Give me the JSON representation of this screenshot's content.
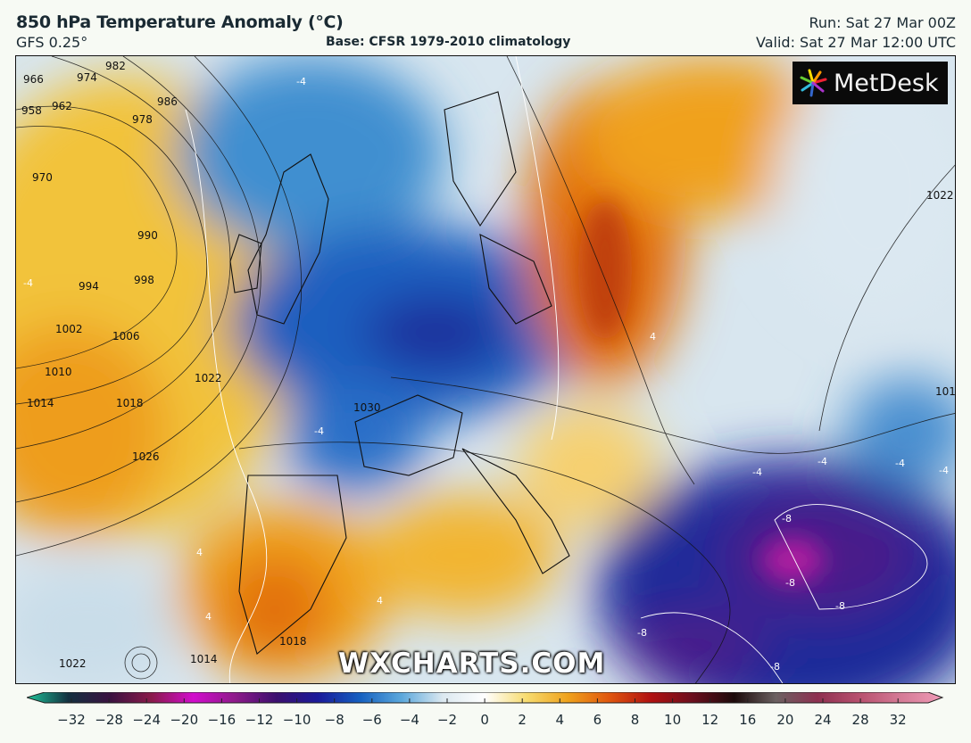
{
  "header": {
    "title": "850 hPa Temperature Anomaly (°C)",
    "model": "GFS 0.25°",
    "base": "Base: CFSR 1979-2010 climatology",
    "run": "Run: Sat 27 Mar 00Z",
    "valid": "Valid: Sat 27 Mar 12:00 UTC"
  },
  "logo": {
    "text": "MetDesk"
  },
  "watermark": "WXCHARTS.COM",
  "colorbar": {
    "labels": [
      "−32",
      "−28",
      "−24",
      "−20",
      "−16",
      "−12",
      "−10",
      "−8",
      "−6",
      "−4",
      "−2",
      "0",
      "2",
      "4",
      "6",
      "8",
      "10",
      "12",
      "16",
      "20",
      "24",
      "28",
      "32"
    ],
    "colors": [
      "#1fc59a",
      "#13303f",
      "#3a1240",
      "#8a1a4a",
      "#d20ccd",
      "#8e1a8a",
      "#3b0f6e",
      "#1a1a9a",
      "#1560c0",
      "#5ba8dc",
      "#dce9f0",
      "#ffffff",
      "#f7dc70",
      "#efa21c",
      "#e0560e",
      "#b01010",
      "#6b0f1d",
      "#1c0a0a",
      "#6b6161",
      "#8e3050",
      "#b8506e",
      "#d57b96",
      "#ef9ab6"
    ]
  },
  "map": {
    "pressure_labels": [
      "966",
      "974",
      "982",
      "958",
      "962",
      "978",
      "986",
      "970",
      "990",
      "994",
      "998",
      "1002",
      "1006",
      "1010",
      "1014",
      "1018",
      "1022",
      "1026",
      "1030",
      "1014",
      "1022",
      "1018",
      "1022",
      "1018"
    ],
    "anomaly_labels": [
      "-4",
      "-4",
      "-4",
      "-4",
      "4",
      "4",
      "-4",
      "-8",
      "-8",
      "-8",
      "-8",
      "-8",
      "4",
      "4",
      "-4",
      "-4"
    ]
  }
}
